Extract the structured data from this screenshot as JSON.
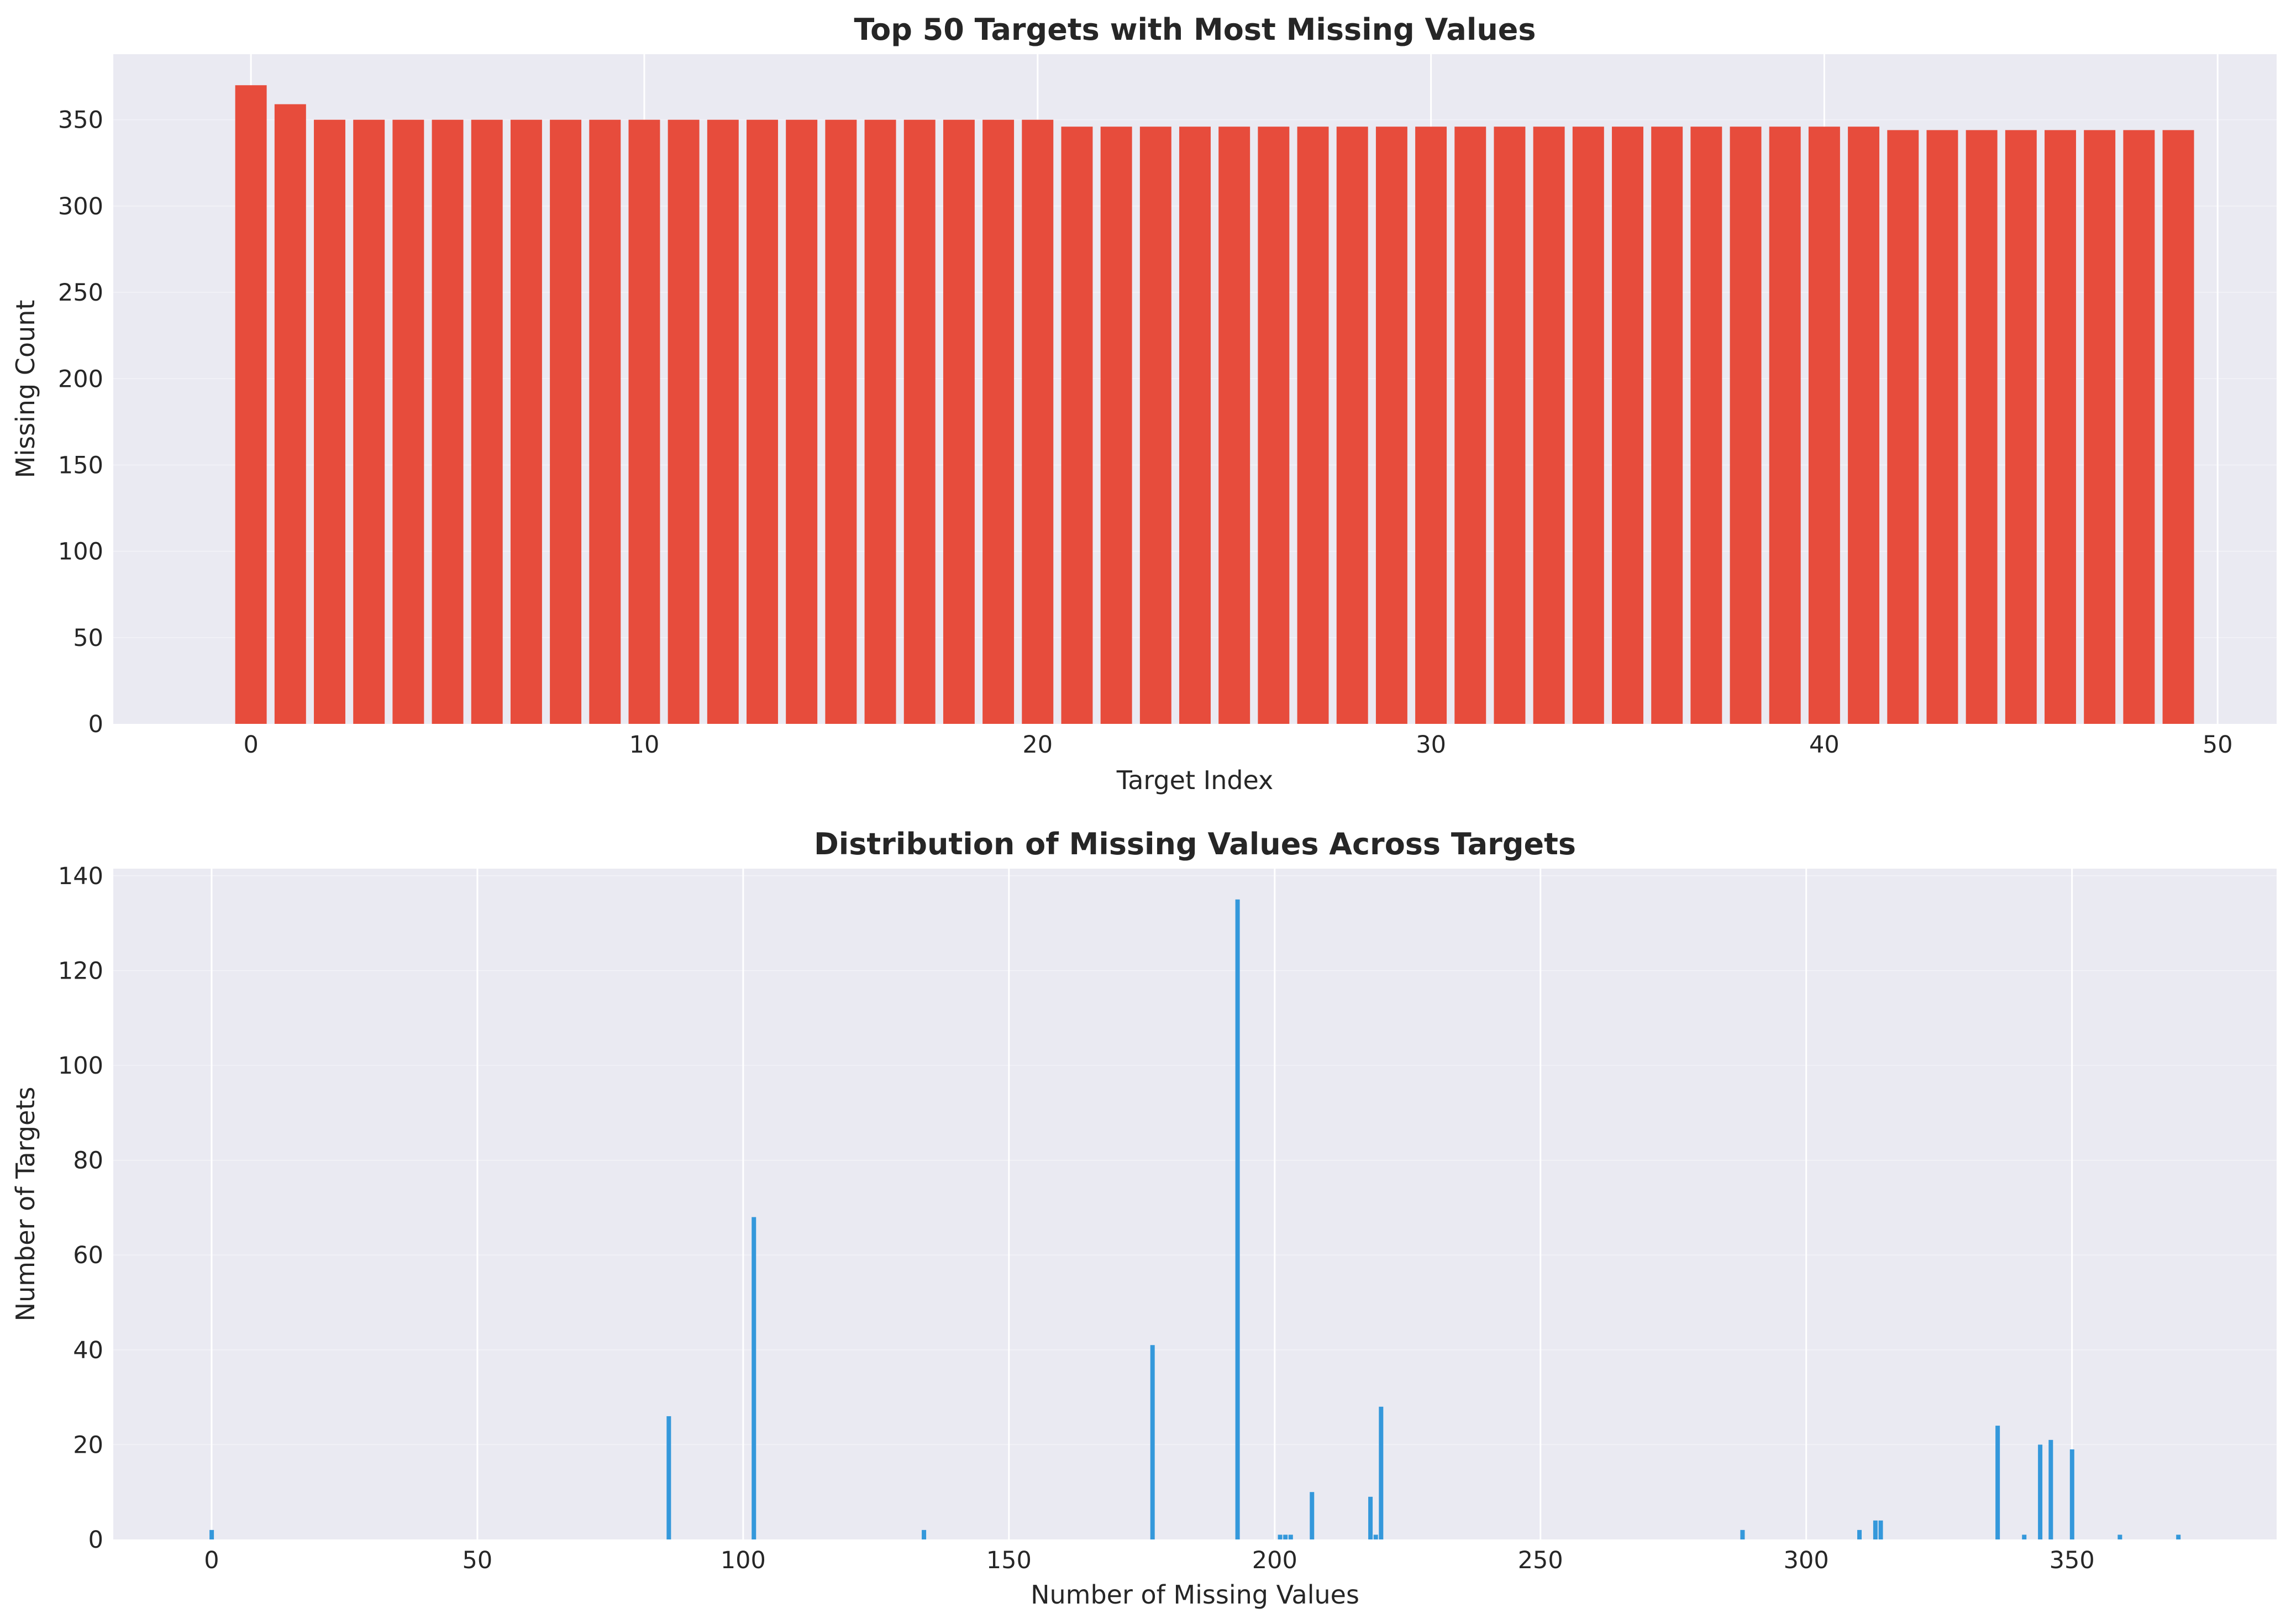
{
  "chart_data": [
    {
      "type": "bar",
      "title": "Top 50 Targets with Most Missing Values",
      "xlabel": "Target Index",
      "ylabel": "Missing Count",
      "xlim": [
        -3.5,
        51.5
      ],
      "ylim": [
        0,
        388
      ],
      "xticks": [
        0,
        10,
        20,
        30,
        40,
        50
      ],
      "yticks": [
        0,
        50,
        100,
        150,
        200,
        250,
        300,
        350
      ],
      "grid": true,
      "color": "#e74c3c",
      "categories": [
        0,
        1,
        2,
        3,
        4,
        5,
        6,
        7,
        8,
        9,
        10,
        11,
        12,
        13,
        14,
        15,
        16,
        17,
        18,
        19,
        20,
        21,
        22,
        23,
        24,
        25,
        26,
        27,
        28,
        29,
        30,
        31,
        32,
        33,
        34,
        35,
        36,
        37,
        38,
        39,
        40,
        41,
        42,
        43,
        44,
        45,
        46,
        47,
        48,
        49
      ],
      "values": [
        370,
        359,
        350,
        350,
        350,
        350,
        350,
        350,
        350,
        350,
        350,
        350,
        350,
        350,
        350,
        350,
        350,
        350,
        350,
        350,
        350,
        346,
        346,
        346,
        346,
        346,
        346,
        346,
        346,
        346,
        346,
        346,
        346,
        346,
        346,
        346,
        346,
        346,
        346,
        346,
        346,
        346,
        344,
        344,
        344,
        344,
        344,
        344,
        344,
        344
      ]
    },
    {
      "type": "bar",
      "title": "Distribution of Missing Values Across Targets",
      "xlabel": "Number of Missing Values",
      "ylabel": "Number of Targets",
      "xlim": [
        -18.5,
        388.5
      ],
      "ylim": [
        0,
        141.5
      ],
      "xticks": [
        0,
        50,
        100,
        150,
        200,
        250,
        300,
        350
      ],
      "yticks": [
        0,
        20,
        40,
        60,
        80,
        100,
        120,
        140
      ],
      "grid": true,
      "color": "#3498db",
      "x": [
        0,
        86,
        102,
        134,
        177,
        193,
        201,
        202,
        203,
        207,
        218,
        219,
        220,
        288,
        310,
        313,
        314,
        336,
        341,
        344,
        346,
        350,
        359,
        370
      ],
      "values": [
        2,
        26,
        68,
        2,
        41,
        135,
        1,
        1,
        1,
        10,
        9,
        1,
        28,
        2,
        2,
        4,
        4,
        24,
        1,
        20,
        21,
        19,
        1,
        1
      ]
    }
  ]
}
